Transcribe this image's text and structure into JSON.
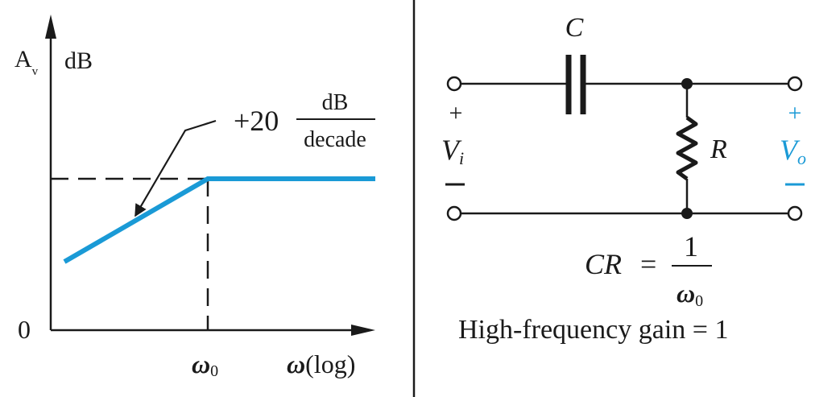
{
  "colors": {
    "ink": "#1a1a1a",
    "accent": "#1a9ad6"
  },
  "bode": {
    "y_label_main": "A",
    "y_label_sub": "v",
    "y_unit": "dB",
    "zero_label": "0",
    "slope_num": "+20",
    "slope_top": "dB",
    "slope_bottom": "decade",
    "x_tick_omega": "ω",
    "x_tick_sub": "0",
    "x_axis_omega": "ω",
    "x_axis_rest": "(log)"
  },
  "circuit": {
    "cap_label": "C",
    "res_label": "R",
    "in_plus": "+",
    "in_label": "V",
    "in_sub": "i",
    "in_minus": "−",
    "out_plus": "+",
    "out_label": "V",
    "out_sub": "o",
    "out_minus": "−"
  },
  "equation": {
    "lhs": "CR",
    "eq": "=",
    "num": "1",
    "den_omega": "ω",
    "den_sub": "0",
    "gain_text": "High-frequency gain = 1"
  }
}
